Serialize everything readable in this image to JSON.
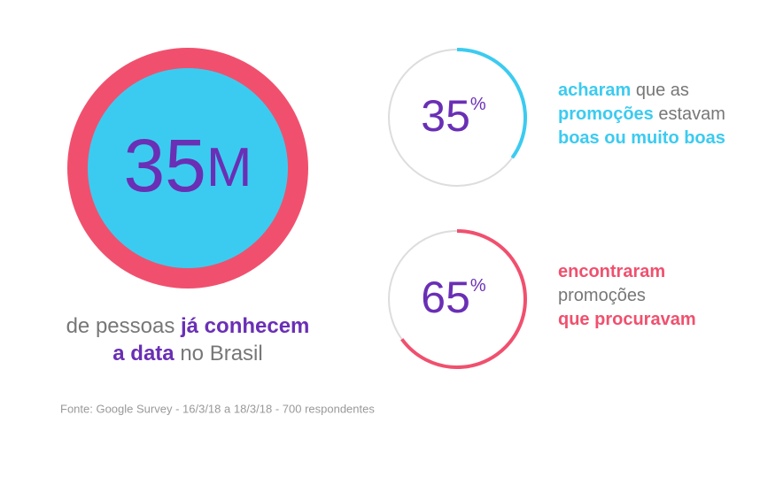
{
  "headline": {
    "number": "35",
    "unit": "M",
    "ring_color": "#f0506e",
    "fill_color": "#3ccbf0",
    "number_color": "#6a2fb5",
    "caption": [
      [
        {
          "text": "de pessoas ",
          "emphasis": false
        },
        {
          "text": "já conhecem",
          "emphasis": true
        }
      ],
      [
        {
          "text": "a data",
          "emphasis": true
        },
        {
          "text": " no Brasil",
          "emphasis": false
        }
      ]
    ],
    "caption_color": "#777777",
    "emphasis_color": "#6a2fb5"
  },
  "gauges": [
    {
      "value": 35,
      "unit": "%",
      "range": [
        0,
        100
      ],
      "color": "#3ccbf0",
      "caption": [
        [
          {
            "text": "acharam",
            "emphasis": true
          },
          {
            "text": " que as",
            "emphasis": false
          }
        ],
        [
          {
            "text": "promoções",
            "emphasis": true
          },
          {
            "text": " estavam",
            "emphasis": false
          }
        ],
        [
          {
            "text": "boas ou muito boas",
            "emphasis": true
          }
        ]
      ]
    },
    {
      "value": 65,
      "unit": "%",
      "range": [
        0,
        100
      ],
      "color": "#f0506e",
      "caption": [
        [
          {
            "text": "encontraram",
            "emphasis": true
          }
        ],
        [
          {
            "text": "promoções",
            "emphasis": false
          }
        ],
        [
          {
            "text": "que procuravam",
            "emphasis": true
          }
        ]
      ]
    }
  ],
  "gauge_track_color": "#dddddd",
  "gauge_number_color": "#6a2fb5",
  "caption_color": "#777777",
  "source": "Fonte: Google Survey - 16/3/18 a 18/3/18 - 700 respondentes"
}
